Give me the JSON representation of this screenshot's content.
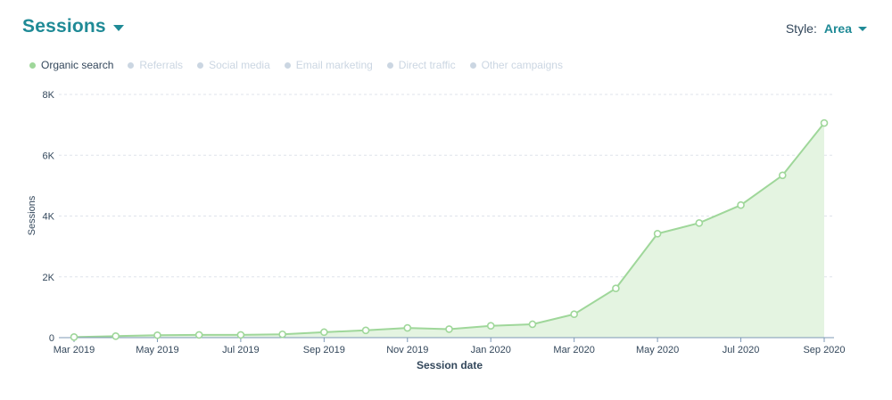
{
  "header": {
    "title": "Sessions",
    "style_label": "Style:",
    "style_value": "Area"
  },
  "legend": [
    {
      "label": "Organic search",
      "active": true
    },
    {
      "label": "Referrals",
      "active": false
    },
    {
      "label": "Social media",
      "active": false
    },
    {
      "label": "Email marketing",
      "active": false
    },
    {
      "label": "Direct traffic",
      "active": false
    },
    {
      "label": "Other campaigns",
      "active": false
    }
  ],
  "colors": {
    "accent": "#1f8a96",
    "series_line": "#9fd79a",
    "series_fill": "#e4f4e1",
    "legend_inactive": "#cbd6e2",
    "grid": "#dfe3eb"
  },
  "chart_data": {
    "type": "area",
    "xlabel": "Session date",
    "ylabel": "Sessions",
    "ylim": [
      0,
      8000
    ],
    "yticks": [
      0,
      2000,
      4000,
      6000,
      8000
    ],
    "ytick_labels": [
      "0",
      "2K",
      "4K",
      "6K",
      "8K"
    ],
    "x_tick_labels": [
      "Mar 2019",
      "May 2019",
      "Jul 2019",
      "Sep 2019",
      "Nov 2019",
      "Jan 2020",
      "Mar 2020",
      "May 2020",
      "Jul 2020",
      "Sep 2020"
    ],
    "grid": true,
    "legend_position": "top-left",
    "categories": [
      "Mar 2019",
      "Apr 2019",
      "May 2019",
      "Jun 2019",
      "Jul 2019",
      "Aug 2019",
      "Sep 2019",
      "Oct 2019",
      "Nov 2019",
      "Dec 2019",
      "Jan 2020",
      "Feb 2020",
      "Mar 2020",
      "Apr 2020",
      "May 2020",
      "Jun 2020",
      "Jul 2020",
      "Aug 2020",
      "Sep 2020"
    ],
    "series": [
      {
        "name": "Organic search",
        "values": [
          20,
          50,
          80,
          90,
          90,
          110,
          180,
          240,
          320,
          280,
          390,
          440,
          770,
          1620,
          3420,
          3770,
          4360,
          5340,
          7060
        ]
      }
    ]
  }
}
